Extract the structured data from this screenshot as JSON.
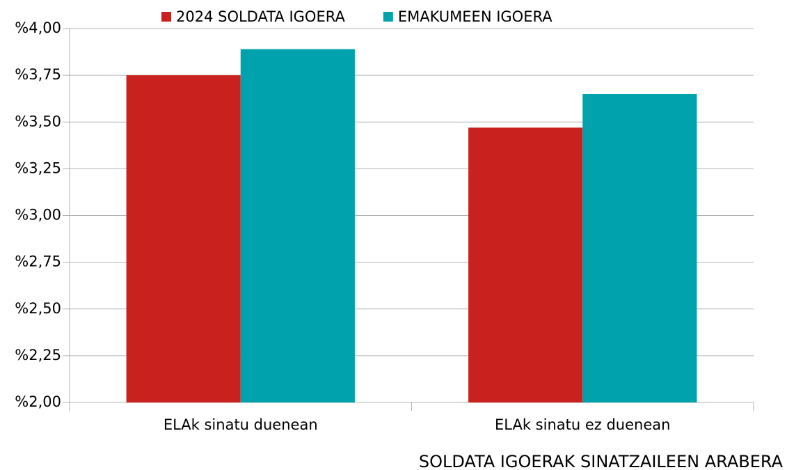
{
  "chart_data": {
    "type": "bar",
    "title": "SOLDATA IGOERAK SINATZAILEEN ARABERA",
    "categories": [
      "ELAk sinatu duenean",
      "ELAk sinatu ez duenean"
    ],
    "series": [
      {
        "name": "2024 SOLDATA IGOERA",
        "color": "#c9211e",
        "values": [
          3.75,
          3.47
        ]
      },
      {
        "name": "EMAKUMEEN IGOERA",
        "color": "#00a3ad",
        "values": [
          3.89,
          3.65
        ]
      }
    ],
    "ylim": [
      2.0,
      4.0
    ],
    "yticks": [
      {
        "value": 2.0,
        "label": "%2,00"
      },
      {
        "value": 2.25,
        "label": "%2,25"
      },
      {
        "value": 2.5,
        "label": "%2,50"
      },
      {
        "value": 2.75,
        "label": "%2,75"
      },
      {
        "value": 3.0,
        "label": "%3,00"
      },
      {
        "value": 3.25,
        "label": "%3,25"
      },
      {
        "value": 3.5,
        "label": "%3,50"
      },
      {
        "value": 3.75,
        "label": "%3,75"
      },
      {
        "value": 4.0,
        "label": "%4,00"
      }
    ],
    "grid": true,
    "legend": "top"
  }
}
